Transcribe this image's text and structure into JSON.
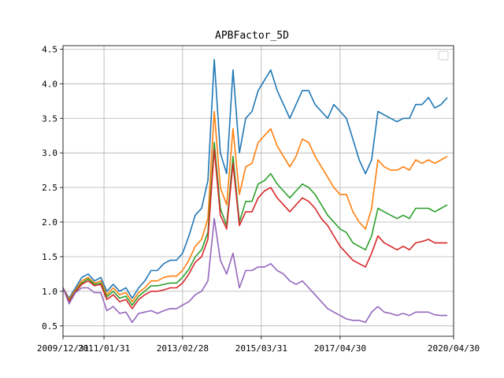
{
  "chart_data": {
    "type": "line",
    "title": "APBFactor_5D",
    "xlabel": "",
    "ylabel": "",
    "grid": true,
    "legend": "top-right",
    "xlim": [
      "2009-12-31",
      "2020-04-30"
    ],
    "ylim": [
      0.35,
      4.55
    ],
    "x_ticks": [
      "2009/12/31",
      "2011/01/31",
      "2013/02/28",
      "2015/03/31",
      "2017/04/30",
      "2020/04/30"
    ],
    "y_ticks": [
      "0.5",
      "1.0",
      "1.5",
      "2.0",
      "2.5",
      "3.0",
      "3.5",
      "4.0",
      "4.5"
    ],
    "x": [
      "2009-12-31",
      "2010-02-28",
      "2010-04-30",
      "2010-06-30",
      "2010-08-31",
      "2010-10-31",
      "2010-12-31",
      "2011-02-28",
      "2011-04-30",
      "2011-06-30",
      "2011-08-31",
      "2011-10-31",
      "2011-12-31",
      "2012-02-29",
      "2012-04-30",
      "2012-06-30",
      "2012-08-31",
      "2012-10-31",
      "2012-12-31",
      "2013-02-28",
      "2013-04-30",
      "2013-06-30",
      "2013-08-31",
      "2013-10-31",
      "2013-12-31",
      "2014-02-28",
      "2014-04-30",
      "2014-06-30",
      "2014-08-31",
      "2014-10-31",
      "2014-12-31",
      "2015-02-28",
      "2015-04-30",
      "2015-06-30",
      "2015-08-31",
      "2015-10-31",
      "2015-12-31",
      "2016-02-29",
      "2016-04-30",
      "2016-06-30",
      "2016-08-31",
      "2016-10-31",
      "2016-12-31",
      "2017-02-28",
      "2017-04-30",
      "2017-06-30",
      "2017-08-31",
      "2017-10-31",
      "2017-12-31",
      "2018-02-28",
      "2018-04-30",
      "2018-06-30",
      "2018-08-31",
      "2018-10-31",
      "2018-12-31",
      "2019-02-28",
      "2019-04-30",
      "2019-06-30",
      "2019-08-31",
      "2019-10-31",
      "2019-12-31",
      "2020-02-29"
    ],
    "series": [
      {
        "color": "#1f77b4",
        "values": [
          1.05,
          0.9,
          1.05,
          1.2,
          1.25,
          1.15,
          1.2,
          1.0,
          1.1,
          1.0,
          1.05,
          0.9,
          1.05,
          1.15,
          1.3,
          1.3,
          1.4,
          1.45,
          1.45,
          1.55,
          1.8,
          2.1,
          2.2,
          2.6,
          4.35,
          3.0,
          2.7,
          4.2,
          3.0,
          3.5,
          3.6,
          3.9,
          4.05,
          4.2,
          3.9,
          3.7,
          3.5,
          3.7,
          3.9,
          3.9,
          3.7,
          3.6,
          3.5,
          3.7,
          3.6,
          3.5,
          3.2,
          2.9,
          2.7,
          2.9,
          3.6,
          3.55,
          3.5,
          3.45,
          3.5,
          3.5,
          3.7,
          3.7,
          3.8,
          3.65,
          3.7,
          3.8
        ]
      },
      {
        "color": "#ff7f0e",
        "values": [
          1.05,
          0.88,
          1.02,
          1.15,
          1.2,
          1.12,
          1.15,
          0.95,
          1.05,
          0.95,
          0.98,
          0.85,
          0.98,
          1.05,
          1.15,
          1.15,
          1.2,
          1.22,
          1.22,
          1.3,
          1.45,
          1.65,
          1.75,
          2.05,
          3.6,
          2.5,
          2.25,
          3.35,
          2.4,
          2.8,
          2.85,
          3.15,
          3.25,
          3.35,
          3.1,
          2.95,
          2.8,
          2.95,
          3.2,
          3.15,
          2.95,
          2.8,
          2.65,
          2.5,
          2.4,
          2.4,
          2.15,
          2.0,
          1.9,
          2.2,
          2.9,
          2.8,
          2.75,
          2.75,
          2.8,
          2.75,
          2.9,
          2.85,
          2.9,
          2.85,
          2.9,
          2.95
        ]
      },
      {
        "color": "#2ca02c",
        "values": [
          1.05,
          0.86,
          1.0,
          1.12,
          1.18,
          1.1,
          1.12,
          0.92,
          1.0,
          0.9,
          0.93,
          0.8,
          0.93,
          1.0,
          1.08,
          1.08,
          1.1,
          1.12,
          1.12,
          1.2,
          1.32,
          1.5,
          1.6,
          1.85,
          3.15,
          2.2,
          1.95,
          2.95,
          2.0,
          2.3,
          2.3,
          2.55,
          2.6,
          2.7,
          2.55,
          2.45,
          2.35,
          2.45,
          2.55,
          2.5,
          2.4,
          2.25,
          2.1,
          2.0,
          1.9,
          1.85,
          1.7,
          1.65,
          1.6,
          1.8,
          2.2,
          2.15,
          2.1,
          2.05,
          2.1,
          2.05,
          2.2,
          2.2,
          2.2,
          2.15,
          2.2,
          2.25
        ]
      },
      {
        "color": "#d62728",
        "values": [
          1.05,
          0.85,
          0.99,
          1.1,
          1.15,
          1.08,
          1.1,
          0.88,
          0.95,
          0.85,
          0.88,
          0.75,
          0.88,
          0.95,
          1.0,
          1.0,
          1.02,
          1.05,
          1.05,
          1.12,
          1.25,
          1.42,
          1.5,
          1.75,
          3.05,
          2.1,
          1.9,
          2.85,
          1.95,
          2.15,
          2.15,
          2.35,
          2.45,
          2.5,
          2.35,
          2.25,
          2.15,
          2.25,
          2.35,
          2.3,
          2.2,
          2.05,
          1.95,
          1.8,
          1.65,
          1.55,
          1.45,
          1.4,
          1.35,
          1.55,
          1.8,
          1.7,
          1.65,
          1.6,
          1.65,
          1.6,
          1.7,
          1.72,
          1.75,
          1.7,
          1.7,
          1.7
        ]
      },
      {
        "color": "#9467bd",
        "values": [
          1.05,
          0.82,
          0.98,
          1.05,
          1.05,
          0.98,
          0.98,
          0.72,
          0.78,
          0.68,
          0.7,
          0.55,
          0.68,
          0.7,
          0.72,
          0.68,
          0.72,
          0.75,
          0.75,
          0.8,
          0.85,
          0.95,
          1.0,
          1.15,
          2.05,
          1.45,
          1.25,
          1.55,
          1.05,
          1.3,
          1.3,
          1.35,
          1.35,
          1.4,
          1.3,
          1.25,
          1.15,
          1.1,
          1.15,
          1.05,
          0.95,
          0.85,
          0.75,
          0.7,
          0.65,
          0.6,
          0.58,
          0.58,
          0.55,
          0.7,
          0.78,
          0.7,
          0.68,
          0.65,
          0.68,
          0.65,
          0.7,
          0.7,
          0.7,
          0.66,
          0.65,
          0.65
        ]
      }
    ]
  }
}
